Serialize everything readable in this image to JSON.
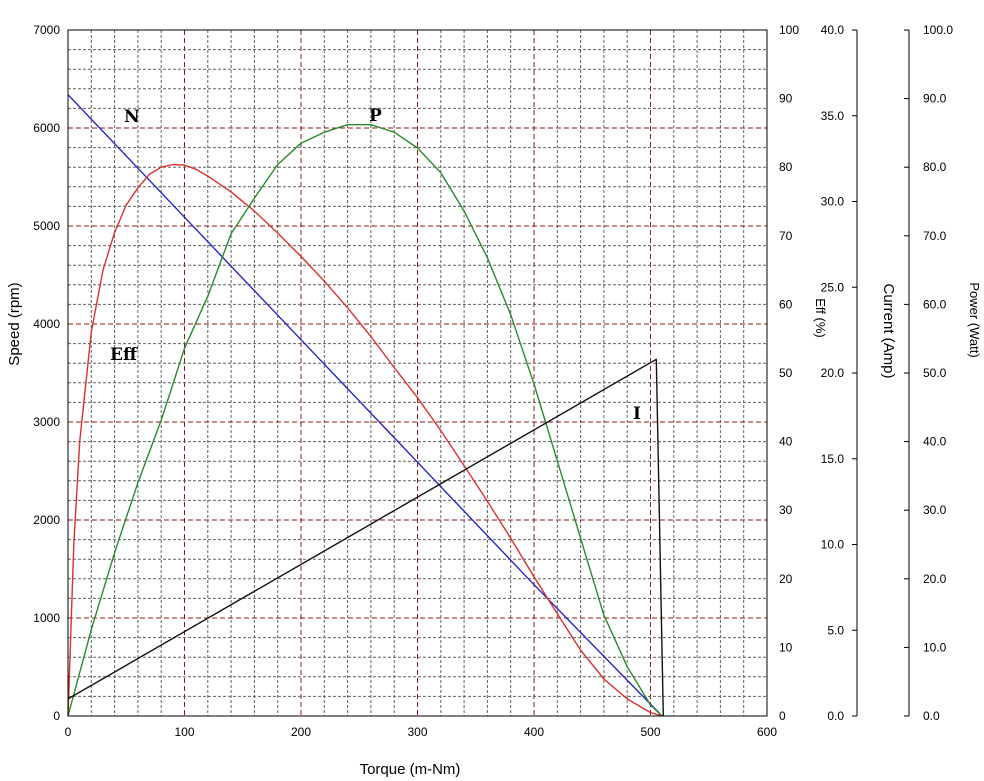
{
  "colors": {
    "speed": "#2525c8",
    "efficiency": "#d9312b",
    "power": "#2a8a2a",
    "current": "#111111",
    "grid_major": "#8b1a1a",
    "grid_minor": "#606060"
  },
  "chart_data": {
    "type": "line",
    "xlabel": "Torque (m-Nm)",
    "xlim": [
      0,
      600
    ],
    "x_ticks": [
      "0",
      "100",
      "200",
      "300",
      "400",
      "500",
      "600"
    ],
    "grid": true,
    "axes": {
      "speed": {
        "label": "Speed (rpm)",
        "range": [
          0,
          7000
        ],
        "ticks": [
          "0",
          "1000",
          "2000",
          "3000",
          "4000",
          "5000",
          "6000",
          "7000"
        ]
      },
      "efficiency": {
        "label": "Eff (%)",
        "range": [
          0,
          100
        ],
        "ticks": [
          "0",
          "10",
          "20",
          "30",
          "40",
          "50",
          "60",
          "70",
          "80",
          "90",
          "100"
        ]
      },
      "current": {
        "label": "Current (Amp)",
        "range": [
          0,
          40
        ],
        "ticks": [
          "0.0",
          "5.0",
          "10.0",
          "15.0",
          "20.0",
          "25.0",
          "30.0",
          "35.0",
          "40.0"
        ]
      },
      "power": {
        "label": "Power (Watt)",
        "range": [
          0,
          100
        ],
        "ticks": [
          "0.0",
          "10.0",
          "20.0",
          "30.0",
          "40.0",
          "50.0",
          "60.0",
          "70.0",
          "80.0",
          "90.0",
          "100.0"
        ]
      }
    },
    "series": [
      {
        "name": "N",
        "axis": "speed",
        "x": [
          0,
          100,
          200,
          300,
          400,
          510
        ],
        "y": [
          6340,
          5090,
          3840,
          2590,
          1340,
          0
        ]
      },
      {
        "name": "Eff",
        "axis": "efficiency",
        "x": [
          0,
          5,
          10,
          20,
          30,
          40,
          50,
          60,
          70,
          80,
          90,
          100,
          110,
          120,
          140,
          160,
          180,
          200,
          220,
          240,
          260,
          280,
          300,
          320,
          340,
          360,
          380,
          400,
          420,
          440,
          460,
          480,
          500,
          510
        ],
        "y": [
          0,
          25,
          40,
          56,
          65,
          70.5,
          74.5,
          77,
          79,
          80,
          80.4,
          80.3,
          79.7,
          78.7,
          76.4,
          73.6,
          70.4,
          67,
          63.4,
          59.5,
          55.3,
          50.8,
          46.4,
          41.6,
          36.5,
          31.3,
          25.9,
          20.3,
          14.9,
          9.6,
          5.4,
          2.5,
          0.5,
          0
        ]
      },
      {
        "name": "P",
        "axis": "power",
        "x": [
          0,
          20,
          40,
          60,
          80,
          100,
          120,
          140,
          160,
          180,
          200,
          220,
          240,
          260,
          280,
          300,
          320,
          340,
          360,
          380,
          400,
          420,
          440,
          460,
          480,
          500,
          510
        ],
        "y": [
          0,
          12.6,
          23.8,
          34,
          43.1,
          53.6,
          61.2,
          70.3,
          75.5,
          80.4,
          83.5,
          85.1,
          86.2,
          86.2,
          85.1,
          82.8,
          79.2,
          73.6,
          66.8,
          58.5,
          48.4,
          37.2,
          25.9,
          14.7,
          7.2,
          1.6,
          0
        ]
      },
      {
        "name": "I",
        "axis": "current",
        "x": [
          0,
          505,
          511
        ],
        "y": [
          1,
          20.8,
          0
        ]
      }
    ]
  }
}
